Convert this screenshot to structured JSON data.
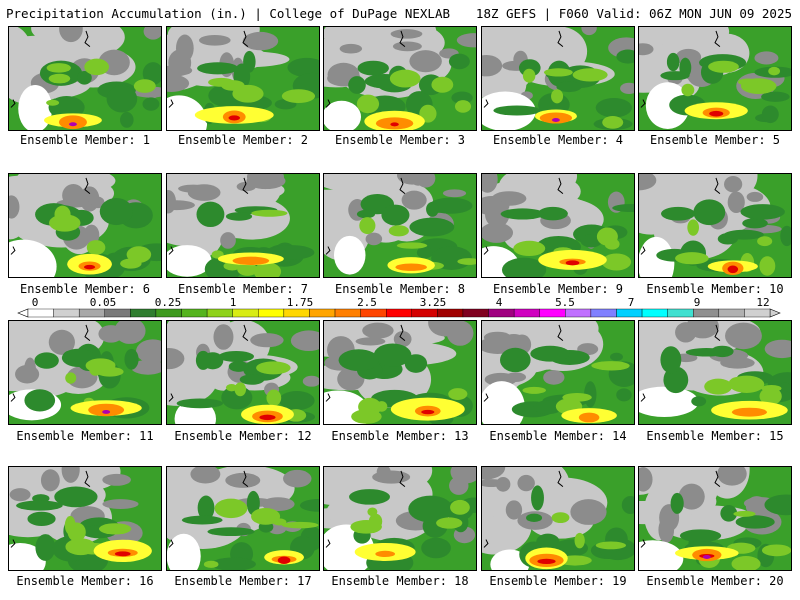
{
  "header": {
    "left": "Precipitation Accumulation (in.) | College of DuPage NEXLAB",
    "right": "18Z GEFS | F060 Valid: 06Z MON JUN 09 2025"
  },
  "panels": [
    {
      "label": "Ensemble Member: 1"
    },
    {
      "label": "Ensemble Member: 2"
    },
    {
      "label": "Ensemble Member: 3"
    },
    {
      "label": "Ensemble Member: 4"
    },
    {
      "label": "Ensemble Member: 5"
    },
    {
      "label": "Ensemble Member: 6"
    },
    {
      "label": "Ensemble Member: 7"
    },
    {
      "label": "Ensemble Member: 8"
    },
    {
      "label": "Ensemble Member: 9"
    },
    {
      "label": "Ensemble Member: 10"
    },
    {
      "label": "Ensemble Member: 11"
    },
    {
      "label": "Ensemble Member: 12"
    },
    {
      "label": "Ensemble Member: 13"
    },
    {
      "label": "Ensemble Member: 14"
    },
    {
      "label": "Ensemble Member: 15"
    },
    {
      "label": "Ensemble Member: 16"
    },
    {
      "label": "Ensemble Member: 17"
    },
    {
      "label": "Ensemble Member: 18"
    },
    {
      "label": "Ensemble Member: 19"
    },
    {
      "label": "Ensemble Member: 20"
    }
  ],
  "colorbar": {
    "tick_labels": [
      "0",
      "0.05",
      "0.25",
      "1",
      "1.75",
      "2.5",
      "3.25",
      "4",
      "5.5",
      "7",
      "9",
      "12"
    ],
    "colors": [
      "#ffffff",
      "#d0d0d0",
      "#a8a8a8",
      "#7a7a7a",
      "#2f7d2f",
      "#3e9a1e",
      "#55b41e",
      "#8fd21a",
      "#d8ec14",
      "#ffff00",
      "#ffd700",
      "#ffa500",
      "#ff7f00",
      "#ff4500",
      "#ff0000",
      "#d40000",
      "#a00000",
      "#800020",
      "#a00080",
      "#d000c0",
      "#ff00ff",
      "#c070ff",
      "#8080ff",
      "#00d0ff",
      "#00ffff",
      "#40e0d0",
      "#909090",
      "#b0b0b0",
      "#d0d0d0"
    ]
  },
  "colors": {
    "light_gray": "#c8c8c8",
    "gray": "#8c8c8c",
    "green_dark": "#2d8a2d",
    "green": "#3aa02a",
    "green_light": "#7cc828",
    "yellow": "#ffff33",
    "orange": "#ff8c00",
    "red": "#e00000",
    "magenta": "#b000b0"
  }
}
